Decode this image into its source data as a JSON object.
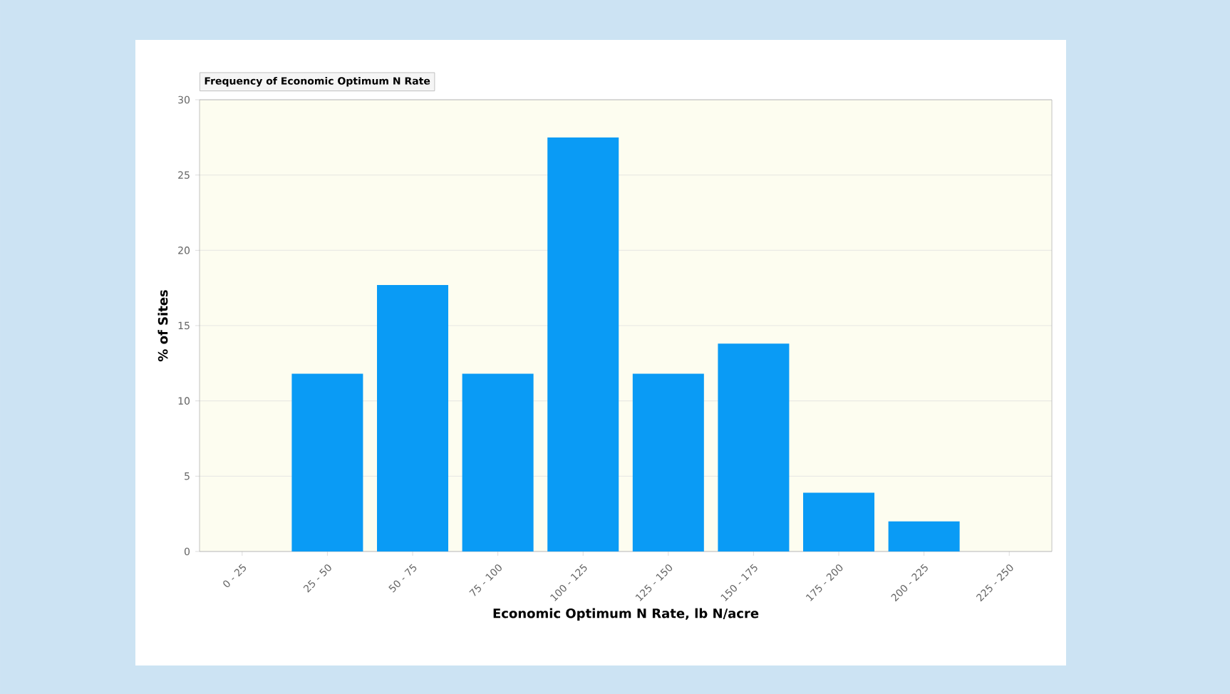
{
  "chart_data": {
    "type": "bar",
    "title": "Frequency of Economic Optimum N Rate",
    "xlabel": "Economic Optimum N Rate, lb N/acre",
    "ylabel": "% of Sites",
    "categories": [
      "0 - 25",
      "25 - 50",
      "50 - 75",
      "75 - 100",
      "100 - 125",
      "125 - 150",
      "150 - 175",
      "175 - 200",
      "200 - 225",
      "225 - 250"
    ],
    "values": [
      0,
      11.8,
      17.7,
      11.8,
      27.5,
      11.8,
      13.8,
      3.9,
      2,
      0
    ],
    "color": "#0a9bf5",
    "ylim": [
      0,
      30
    ],
    "yticks": [
      0,
      5,
      10,
      15,
      20,
      25,
      30
    ],
    "grid": "y"
  }
}
